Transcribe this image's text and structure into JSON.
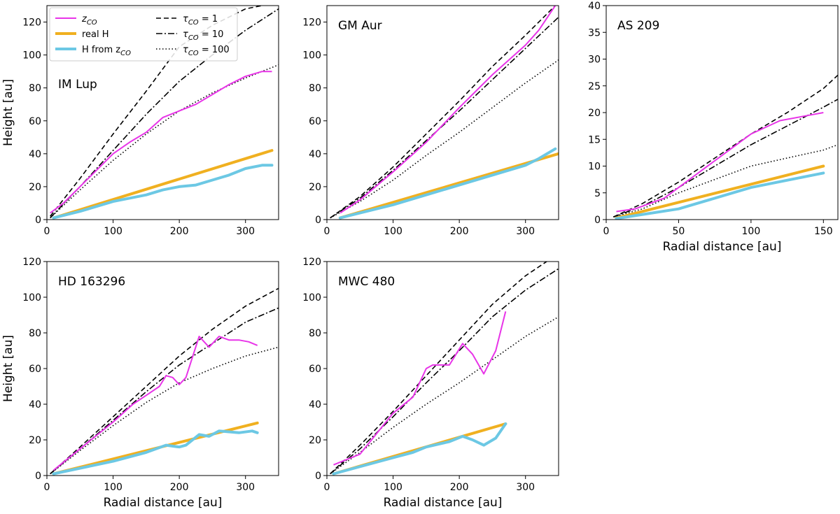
{
  "legend": {
    "position": "upper-left of first panel",
    "entries": [
      {
        "key": "zco",
        "label": "z",
        "sub": "CO",
        "color": "#e834e8",
        "style": "solid",
        "width": 2
      },
      {
        "key": "realH",
        "label": "real H",
        "sub": "",
        "color": "#f0b020",
        "style": "solid",
        "width": 4
      },
      {
        "key": "Hz",
        "label": "H from z",
        "sub": "CO",
        "color": "#6cc8e4",
        "style": "solid",
        "width": 4
      },
      {
        "key": "tau1",
        "label": "τ",
        "sub": "CO",
        "suffix": " = 1",
        "color": "#000000",
        "style": "dashed",
        "width": 1.6
      },
      {
        "key": "tau10",
        "label": "τ",
        "sub": "CO",
        "suffix": " = 10",
        "color": "#000000",
        "style": "dashdot",
        "width": 1.6
      },
      {
        "key": "tau100",
        "label": "τ",
        "sub": "CO",
        "suffix": " = 100",
        "color": "#000000",
        "style": "dotted",
        "width": 1.6
      }
    ]
  },
  "chart_data": [
    {
      "type": "line",
      "title": "IM Lup",
      "xlabel": "",
      "ylabel": "Height [au]",
      "xlim": [
        0,
        350
      ],
      "ylim": [
        0,
        130
      ],
      "xticks": [
        0,
        100,
        200,
        300
      ],
      "yticks": [
        0,
        20,
        40,
        60,
        80,
        100,
        120
      ],
      "series": [
        {
          "key": "tau1",
          "x": [
            5,
            50,
            100,
            150,
            200,
            250,
            300,
            325
          ],
          "y": [
            2,
            25,
            52,
            78,
            105,
            118,
            128,
            130
          ]
        },
        {
          "key": "tau10",
          "x": [
            5,
            50,
            100,
            150,
            200,
            250,
            300,
            350
          ],
          "y": [
            1,
            20,
            42,
            64,
            84,
            100,
            115,
            128
          ]
        },
        {
          "key": "tau100",
          "x": [
            5,
            50,
            100,
            150,
            200,
            250,
            300,
            350
          ],
          "y": [
            1,
            18,
            36,
            52,
            66,
            77,
            86,
            94
          ]
        },
        {
          "key": "zco",
          "x": [
            5,
            25,
            50,
            75,
            100,
            125,
            150,
            175,
            200,
            225,
            250,
            275,
            300,
            325,
            340
          ],
          "y": [
            4,
            10,
            20,
            30,
            40,
            47,
            53,
            62,
            66,
            70,
            76,
            82,
            87,
            90,
            90
          ]
        },
        {
          "key": "realH",
          "x": [
            10,
            340
          ],
          "y": [
            1,
            42
          ]
        },
        {
          "key": "Hz",
          "x": [
            10,
            50,
            100,
            150,
            175,
            200,
            225,
            250,
            275,
            300,
            325,
            340
          ],
          "y": [
            1,
            5,
            11,
            15,
            18,
            20,
            21,
            24,
            27,
            31,
            33,
            33
          ]
        }
      ]
    },
    {
      "type": "line",
      "title": "GM Aur",
      "xlabel": "",
      "ylabel": "",
      "xlim": [
        0,
        350
      ],
      "ylim": [
        0,
        130
      ],
      "xticks": [
        0,
        100,
        200,
        300
      ],
      "yticks": [
        0,
        20,
        40,
        60,
        80,
        100,
        120
      ],
      "series": [
        {
          "key": "tau1",
          "x": [
            5,
            50,
            100,
            150,
            200,
            250,
            300,
            350
          ],
          "y": [
            1,
            14,
            32,
            52,
            72,
            93,
            112,
            132
          ]
        },
        {
          "key": "tau10",
          "x": [
            5,
            50,
            100,
            150,
            200,
            250,
            300,
            350
          ],
          "y": [
            1,
            13,
            30,
            48,
            66,
            85,
            104,
            123
          ]
        },
        {
          "key": "tau100",
          "x": [
            5,
            50,
            100,
            150,
            200,
            250,
            300,
            350
          ],
          "y": [
            1,
            11,
            24,
            39,
            53,
            68,
            83,
            97
          ]
        },
        {
          "key": "zco",
          "x": [
            20,
            50,
            100,
            150,
            200,
            250,
            300,
            320,
            345
          ],
          "y": [
            4,
            12,
            29,
            47,
            68,
            88,
            106,
            115,
            130
          ]
        },
        {
          "key": "realH",
          "x": [
            20,
            350
          ],
          "y": [
            1,
            40
          ]
        },
        {
          "key": "Hz",
          "x": [
            20,
            100,
            200,
            300,
            320,
            345
          ],
          "y": [
            1,
            9,
            21,
            33,
            37,
            43
          ]
        }
      ]
    },
    {
      "type": "line",
      "title": "AS 209",
      "xlabel": "Radial distance [au]",
      "ylabel": "",
      "xlim": [
        0,
        160
      ],
      "ylim": [
        0,
        40
      ],
      "xticks": [
        0,
        50,
        100,
        150
      ],
      "yticks": [
        0,
        5,
        10,
        15,
        20,
        25,
        30,
        35,
        40
      ],
      "series": [
        {
          "key": "tau1",
          "x": [
            5,
            25,
            50,
            75,
            100,
            125,
            150,
            160
          ],
          "y": [
            0.5,
            3,
            7,
            11.5,
            16,
            20,
            24.5,
            27
          ]
        },
        {
          "key": "tau10",
          "x": [
            5,
            25,
            50,
            75,
            100,
            125,
            150,
            160
          ],
          "y": [
            0.5,
            2.5,
            6,
            10,
            14,
            17.5,
            21,
            22.5
          ]
        },
        {
          "key": "tau100",
          "x": [
            5,
            25,
            50,
            75,
            100,
            125,
            150,
            160
          ],
          "y": [
            0.5,
            2,
            5,
            7.5,
            10,
            11.5,
            13,
            14
          ]
        },
        {
          "key": "zco",
          "x": [
            7,
            20,
            40,
            60,
            80,
            100,
            120,
            140,
            150
          ],
          "y": [
            1.5,
            2,
            4,
            8,
            12,
            16,
            18.5,
            19.5,
            20
          ]
        },
        {
          "key": "realH",
          "x": [
            7,
            150
          ],
          "y": [
            0.3,
            10
          ]
        },
        {
          "key": "Hz",
          "x": [
            7,
            50,
            100,
            150
          ],
          "y": [
            0.2,
            2,
            6,
            8.7
          ]
        }
      ]
    },
    {
      "type": "line",
      "title": "HD 163296",
      "xlabel": "Radial distance [au]",
      "ylabel": "Height [au]",
      "xlim": [
        0,
        350
      ],
      "ylim": [
        0,
        120
      ],
      "xticks": [
        0,
        100,
        200,
        300
      ],
      "yticks": [
        0,
        20,
        40,
        60,
        80,
        100,
        120
      ],
      "series": [
        {
          "key": "tau1",
          "x": [
            5,
            50,
            100,
            150,
            200,
            250,
            300,
            350
          ],
          "y": [
            1,
            16,
            33,
            50,
            67,
            82,
            95,
            105
          ]
        },
        {
          "key": "tau10",
          "x": [
            5,
            50,
            100,
            150,
            200,
            250,
            300,
            350
          ],
          "y": [
            1,
            15,
            31,
            47,
            62,
            74,
            86,
            94
          ]
        },
        {
          "key": "tau100",
          "x": [
            5,
            50,
            100,
            150,
            200,
            250,
            300,
            350
          ],
          "y": [
            1,
            14,
            28,
            41,
            52,
            60,
            67,
            72
          ]
        },
        {
          "key": "zco",
          "x": [
            10,
            50,
            100,
            130,
            150,
            170,
            180,
            190,
            200,
            210,
            230,
            245,
            260,
            275,
            290,
            305,
            318
          ],
          "y": [
            3,
            15,
            30,
            40,
            45,
            50,
            56,
            55,
            51,
            55,
            78,
            72,
            78,
            76,
            76,
            75,
            73
          ]
        },
        {
          "key": "realH",
          "x": [
            10,
            318
          ],
          "y": [
            1,
            29.5
          ]
        },
        {
          "key": "Hz",
          "x": [
            10,
            100,
            150,
            180,
            200,
            210,
            230,
            245,
            260,
            290,
            310,
            318
          ],
          "y": [
            1,
            8,
            13,
            17,
            16,
            17,
            23,
            22,
            25,
            24,
            25,
            24
          ]
        }
      ]
    },
    {
      "type": "line",
      "title": "MWC 480",
      "xlabel": "Radial distance [au]",
      "ylabel": "",
      "xlim": [
        0,
        350
      ],
      "ylim": [
        0,
        120
      ],
      "xticks": [
        0,
        100,
        200,
        300
      ],
      "yticks": [
        0,
        20,
        40,
        60,
        80,
        100,
        120
      ],
      "series": [
        {
          "key": "tau1",
          "x": [
            5,
            50,
            100,
            150,
            200,
            250,
            300,
            340
          ],
          "y": [
            1,
            17,
            36,
            56,
            76,
            96,
            112,
            122
          ]
        },
        {
          "key": "tau10",
          "x": [
            5,
            50,
            100,
            150,
            200,
            250,
            300,
            350
          ],
          "y": [
            1,
            15,
            33,
            52,
            70,
            89,
            104,
            116
          ]
        },
        {
          "key": "tau100",
          "x": [
            5,
            50,
            100,
            150,
            200,
            250,
            300,
            350
          ],
          "y": [
            1,
            13,
            27,
            40,
            52,
            65,
            78,
            89
          ]
        },
        {
          "key": "zco",
          "x": [
            10,
            50,
            100,
            130,
            150,
            160,
            185,
            205,
            220,
            237,
            255,
            270
          ],
          "y": [
            6,
            12,
            35,
            44,
            60,
            62,
            62,
            74,
            68,
            57,
            70,
            92
          ]
        },
        {
          "key": "realH",
          "x": [
            10,
            270
          ],
          "y": [
            1,
            29
          ]
        },
        {
          "key": "Hz",
          "x": [
            10,
            100,
            130,
            150,
            185,
            205,
            220,
            237,
            255,
            270
          ],
          "y": [
            1,
            10,
            13,
            16,
            19,
            22,
            20,
            17,
            21,
            29
          ]
        }
      ]
    }
  ]
}
